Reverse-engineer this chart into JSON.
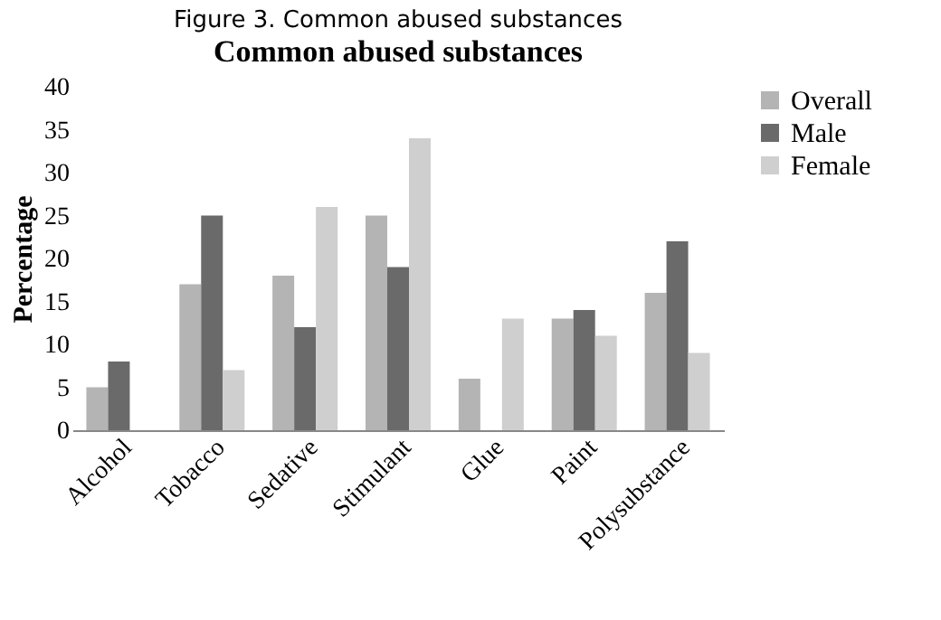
{
  "chart_data": {
    "type": "bar",
    "title": "Figure 3. Common abused substances",
    "subtitle": "Common abused substances",
    "ylabel": "Percentage",
    "categories": [
      "Alcohol",
      "Tobacco",
      "Sedative",
      "Stimulant",
      "Glue",
      "Paint",
      "Polysubstance"
    ],
    "series": [
      {
        "name": "Overall",
        "color": "#b4b4b4",
        "values": [
          5,
          17,
          18,
          25,
          6,
          13,
          16
        ]
      },
      {
        "name": "Male",
        "color": "#6a6a6a",
        "values": [
          8,
          25,
          12,
          19,
          null,
          14,
          22
        ]
      },
      {
        "name": "Female",
        "color": "#cfcfcf",
        "values": [
          null,
          7,
          26,
          34,
          13,
          11,
          9
        ]
      }
    ],
    "ylim": [
      0,
      40
    ],
    "yticks": [
      0,
      5,
      10,
      15,
      20,
      25,
      30,
      35,
      40
    ],
    "grid": false,
    "legend": "right"
  }
}
